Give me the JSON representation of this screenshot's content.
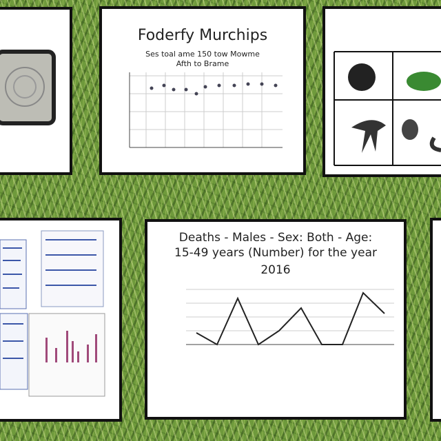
{
  "panels": [
    {
      "title": "Foderfy Murchips",
      "subtitle": [
        "Ses toal ame 150 tow Mowme",
        "Afth to Brame"
      ]
    },
    {
      "title": [
        "Deaths - Males - Sex: Both - Age:",
        "15-49 years (Number) for the year",
        "2016"
      ]
    }
  ]
}
